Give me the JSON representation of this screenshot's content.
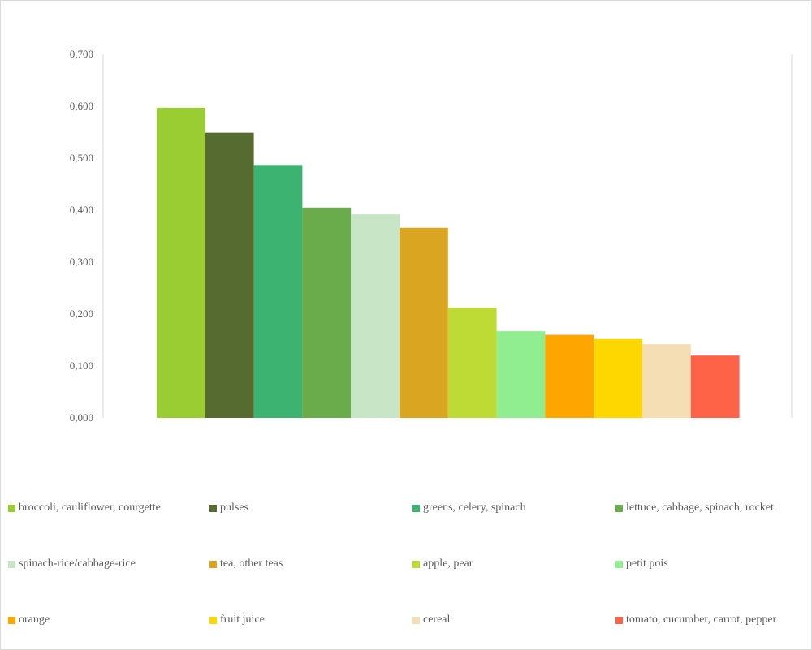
{
  "chart_data": {
    "type": "bar",
    "title": "",
    "xlabel": "",
    "ylabel": "",
    "ylim": [
      0,
      0.7
    ],
    "yticks": [
      "0,000",
      "0,100",
      "0,200",
      "0,300",
      "0,400",
      "0,500",
      "0,600",
      "0,700"
    ],
    "grid": false,
    "legend_position": "bottom",
    "series": [
      {
        "name": "broccoli, cauliflower, courgette",
        "value": 0.597,
        "color": "#9ACD32"
      },
      {
        "name": "pulses",
        "value": 0.549,
        "color": "#556B2F"
      },
      {
        "name": "greens, celery, spinach",
        "value": 0.487,
        "color": "#3CB371"
      },
      {
        "name": "lettuce, cabbage, spinach, rocket",
        "value": 0.405,
        "color": "#6AAB4B"
      },
      {
        "name": "spinach-rice/cabbage-rice",
        "value": 0.392,
        "color": "#C8E6C5"
      },
      {
        "name": "tea, other teas",
        "value": 0.366,
        "color": "#DAA520"
      },
      {
        "name": "apple, pear",
        "value": 0.212,
        "color": "#BEDA35"
      },
      {
        "name": "petit pois",
        "value": 0.167,
        "color": "#90EE90"
      },
      {
        "name": "orange",
        "value": 0.16,
        "color": "#FFA500"
      },
      {
        "name": "fruit juice",
        "value": 0.152,
        "color": "#FFD700"
      },
      {
        "name": "cereal",
        "value": 0.142,
        "color": "#F5DEB3"
      },
      {
        "name": "tomato, cucumber, carrot, pepper",
        "value": 0.12,
        "color": "#FF6347"
      }
    ]
  }
}
